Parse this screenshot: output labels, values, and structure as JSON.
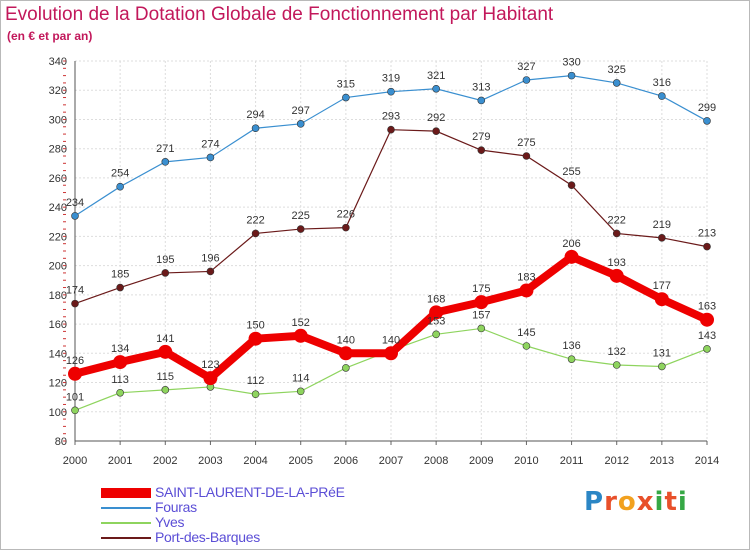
{
  "title": "Evolution de la Dotation Globale de Fonctionnement par Habitant",
  "subtitle": "(en € et par an)",
  "logo": {
    "text": "Proxiti",
    "letters": [
      "P",
      "r",
      "o",
      "x",
      "i",
      "t",
      "i"
    ],
    "colors": [
      "#2b86c5",
      "#e8502a",
      "#f2a11f",
      "#e8502a",
      "#36a845",
      "#e8502a",
      "#36a845"
    ]
  },
  "chart_data": {
    "type": "line",
    "title": "Evolution de la Dotation Globale de Fonctionnement par Habitant",
    "xlabel": "",
    "ylabel": "",
    "x": [
      "2000",
      "2001",
      "2002",
      "2003",
      "2004",
      "2005",
      "2006",
      "2007",
      "2008",
      "2009",
      "2010",
      "2011",
      "2012",
      "2013",
      "2014"
    ],
    "ylim": [
      80,
      340
    ],
    "yticks": [
      "80",
      "100",
      "120",
      "140",
      "160",
      "180",
      "200",
      "220",
      "240",
      "260",
      "280",
      "300",
      "320",
      "340"
    ],
    "grid": true,
    "legend_position": "bottom-left",
    "series": [
      {
        "name": "SAINT-LAURENT-DE-LA-PRéE",
        "color": "#ee0000",
        "emphasis": true,
        "values": [
          126,
          134,
          141,
          123,
          150,
          152,
          140,
          140,
          168,
          175,
          183,
          206,
          193,
          177,
          163
        ]
      },
      {
        "name": "Fouras",
        "color": "#3a8fd0",
        "values": [
          234,
          254,
          271,
          274,
          294,
          297,
          315,
          319,
          321,
          313,
          327,
          330,
          325,
          316,
          299
        ]
      },
      {
        "name": "Yves",
        "color": "#8ed45e",
        "values": [
          101,
          113,
          115,
          117,
          112,
          114,
          130,
          142,
          153,
          157,
          145,
          136,
          132,
          131,
          143
        ]
      },
      {
        "name": "Port-des-Barques",
        "color": "#6b1a1a",
        "values": [
          174,
          185,
          195,
          196,
          222,
          225,
          226,
          293,
          292,
          279,
          275,
          255,
          222,
          219,
          213
        ]
      }
    ],
    "data_labels": [
      [
        "126",
        "134",
        "141",
        "123",
        "150",
        "152",
        "140",
        "140",
        "168",
        "175",
        "183",
        "206",
        "193",
        "177",
        "163"
      ],
      [
        "234",
        "254",
        "271",
        "274",
        "294",
        "297",
        "315",
        "319",
        "321",
        "313",
        "327",
        "330",
        "325",
        "316",
        "299"
      ],
      [
        "101",
        "113",
        "115",
        "",
        "112",
        "114",
        "",
        "",
        "153",
        "157",
        "145",
        "136",
        "132",
        "131",
        "143"
      ],
      [
        "174",
        "185",
        "195",
        "196",
        "222",
        "225",
        "226",
        "293",
        "292",
        "279",
        "275",
        "255",
        "222",
        "219",
        "213"
      ]
    ]
  }
}
